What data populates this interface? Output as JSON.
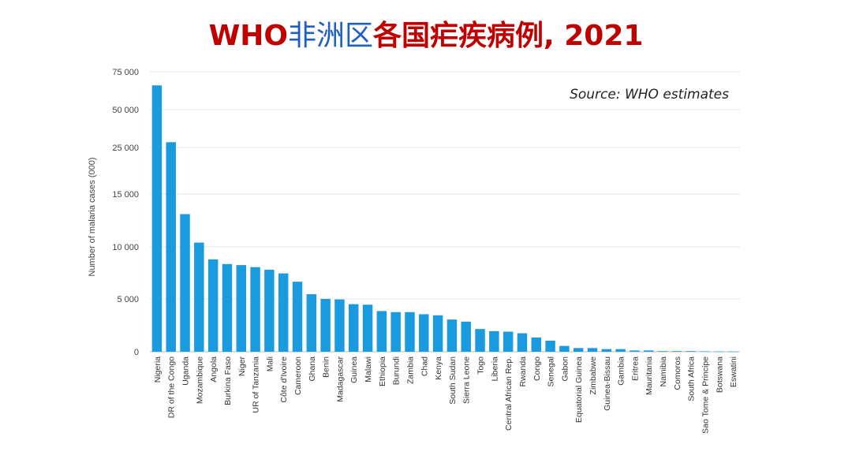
{
  "chart_data": {
    "type": "bar",
    "title": {
      "parts": [
        {
          "text": "WHO",
          "color": "#c00000"
        },
        {
          "text": "非洲区",
          "color": "#1f5fbf"
        },
        {
          "text": "各国疟疾病例, 2021",
          "color": "#c00000"
        }
      ]
    },
    "annotation": "Source: WHO estimates",
    "ylabel": "Number of malaria cases (000)",
    "yticks": [
      {
        "label": "0",
        "value": 0
      },
      {
        "label": "5 000",
        "value": 5000
      },
      {
        "label": "10 000",
        "value": 10000
      },
      {
        "label": "15 000",
        "value": 15000
      },
      {
        "label": "25 000",
        "value": 25000
      },
      {
        "label": "50 000",
        "value": 50000
      },
      {
        "label": "75 000",
        "value": 75000
      }
    ],
    "bar_color": "#1a9be0",
    "grid": true,
    "categories": [
      "Nigeria",
      "DR of the Congo",
      "Uganda",
      "Mozambique",
      "Angola",
      "Burkina Faso",
      "Niger",
      "UR of Tanzania",
      "Mali",
      "Côte d'Ivoire",
      "Cameroon",
      "Ghana",
      "Benin",
      "Madagascar",
      "Guinea",
      "Malawi",
      "Ethiopia",
      "Burundi",
      "Zambia",
      "Chad",
      "Kenya",
      "South Sudan",
      "Sierra Leone",
      "Togo",
      "Liberia",
      "Central African Rep.",
      "Rwanda",
      "Congo",
      "Senegal",
      "Gabon",
      "Equatorial Guinea",
      "Zimbabwe",
      "Guinea-Bissau",
      "Gambia",
      "Eritrea",
      "Mauritania",
      "Namibia",
      "Comoros",
      "South Africa",
      "Sao Tome & Principe",
      "Botswana",
      "Eswatini"
    ],
    "values": [
      66000,
      28500,
      13100,
      10400,
      8800,
      8350,
      8250,
      8050,
      7800,
      7450,
      6650,
      5450,
      5000,
      4950,
      4500,
      4450,
      3850,
      3750,
      3750,
      3550,
      3450,
      3050,
      2850,
      2150,
      1950,
      1900,
      1750,
      1350,
      1050,
      550,
      350,
      350,
      250,
      250,
      120,
      120,
      60,
      60,
      60,
      40,
      30,
      20
    ]
  }
}
